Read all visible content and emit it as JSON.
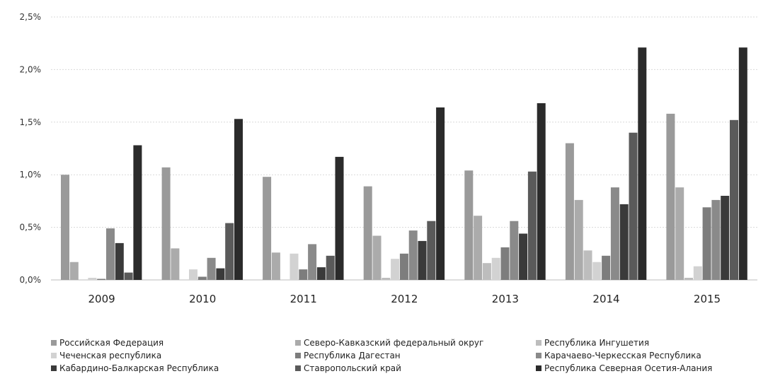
{
  "chart_data": {
    "type": "bar",
    "title": "",
    "xlabel": "",
    "ylabel": "",
    "ylim": [
      0,
      2.5
    ],
    "y_ticks": [
      "0,0%",
      "0,5%",
      "1,0%",
      "1,5%",
      "2,0%",
      "2,5%"
    ],
    "y_tick_values": [
      0,
      0.5,
      1.0,
      1.5,
      2.0,
      2.5
    ],
    "grid": true,
    "legend_position": "bottom",
    "categories": [
      "2009",
      "2010",
      "2011",
      "2012",
      "2013",
      "2014",
      "2015"
    ],
    "series": [
      {
        "name": "Российская  Федерация",
        "color": "#9a9a9a",
        "values": [
          1.0,
          1.07,
          0.98,
          0.89,
          1.04,
          1.3,
          1.58
        ]
      },
      {
        "name": "Северо-Кавказский федеральный округ",
        "color": "#ababab",
        "values": [
          0.17,
          0.3,
          0.26,
          0.42,
          0.61,
          0.76,
          0.88
        ]
      },
      {
        "name": "Республика Ингушетия",
        "color": "#bdbdbd",
        "values": [
          0.0,
          0.0,
          0.0,
          0.02,
          0.16,
          0.28,
          0.02
        ]
      },
      {
        "name": "Чеченская республика",
        "color": "#d2d2d2",
        "values": [
          0.02,
          0.1,
          0.25,
          0.2,
          0.21,
          0.17,
          0.13
        ]
      },
      {
        "name": "Республика Дагестан",
        "color": "#7d7d7d",
        "values": [
          0.01,
          0.03,
          0.1,
          0.25,
          0.31,
          0.23,
          0.69
        ]
      },
      {
        "name": "Карачаево-Черкесская Республика",
        "color": "#8a8a8a",
        "values": [
          0.49,
          0.21,
          0.34,
          0.47,
          0.56,
          0.88,
          0.76
        ]
      },
      {
        "name": "Кабардино-Балкарская Республика",
        "color": "#3a3a3a",
        "values": [
          0.35,
          0.11,
          0.12,
          0.37,
          0.44,
          0.72,
          0.8
        ]
      },
      {
        "name": "Ставропольский край",
        "color": "#5a5a5a",
        "values": [
          0.07,
          0.54,
          0.23,
          0.56,
          1.03,
          1.4,
          1.52
        ]
      },
      {
        "name": "Республика Северная Осетия-Алания",
        "color": "#2b2b2b",
        "values": [
          1.28,
          1.53,
          1.17,
          1.64,
          1.68,
          2.21,
          2.21
        ]
      }
    ]
  }
}
